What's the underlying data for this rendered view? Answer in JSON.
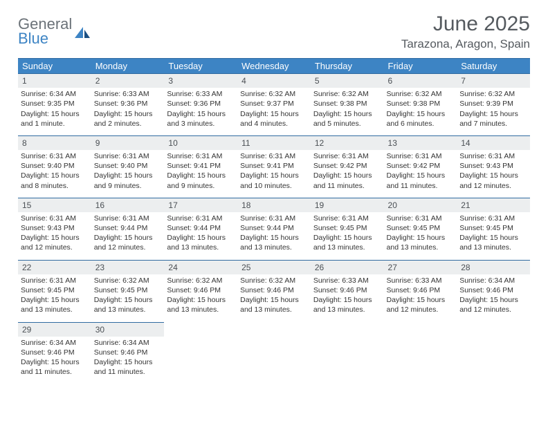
{
  "brand": {
    "general": "General",
    "blue": "Blue"
  },
  "title": "June 2025",
  "location": "Tarazona, Aragon, Spain",
  "colors": {
    "header_bg": "#3d84c4",
    "header_border": "#2f6aa0",
    "daynum_bg": "#eceeef",
    "text": "#333333",
    "muted": "#555a5f"
  },
  "weekdays": [
    "Sunday",
    "Monday",
    "Tuesday",
    "Wednesday",
    "Thursday",
    "Friday",
    "Saturday"
  ],
  "weeks": [
    [
      {
        "n": "1",
        "sr": "6:34 AM",
        "ss": "9:35 PM",
        "dl": "15 hours and 1 minute."
      },
      {
        "n": "2",
        "sr": "6:33 AM",
        "ss": "9:36 PM",
        "dl": "15 hours and 2 minutes."
      },
      {
        "n": "3",
        "sr": "6:33 AM",
        "ss": "9:36 PM",
        "dl": "15 hours and 3 minutes."
      },
      {
        "n": "4",
        "sr": "6:32 AM",
        "ss": "9:37 PM",
        "dl": "15 hours and 4 minutes."
      },
      {
        "n": "5",
        "sr": "6:32 AM",
        "ss": "9:38 PM",
        "dl": "15 hours and 5 minutes."
      },
      {
        "n": "6",
        "sr": "6:32 AM",
        "ss": "9:38 PM",
        "dl": "15 hours and 6 minutes."
      },
      {
        "n": "7",
        "sr": "6:32 AM",
        "ss": "9:39 PM",
        "dl": "15 hours and 7 minutes."
      }
    ],
    [
      {
        "n": "8",
        "sr": "6:31 AM",
        "ss": "9:40 PM",
        "dl": "15 hours and 8 minutes."
      },
      {
        "n": "9",
        "sr": "6:31 AM",
        "ss": "9:40 PM",
        "dl": "15 hours and 9 minutes."
      },
      {
        "n": "10",
        "sr": "6:31 AM",
        "ss": "9:41 PM",
        "dl": "15 hours and 9 minutes."
      },
      {
        "n": "11",
        "sr": "6:31 AM",
        "ss": "9:41 PM",
        "dl": "15 hours and 10 minutes."
      },
      {
        "n": "12",
        "sr": "6:31 AM",
        "ss": "9:42 PM",
        "dl": "15 hours and 11 minutes."
      },
      {
        "n": "13",
        "sr": "6:31 AM",
        "ss": "9:42 PM",
        "dl": "15 hours and 11 minutes."
      },
      {
        "n": "14",
        "sr": "6:31 AM",
        "ss": "9:43 PM",
        "dl": "15 hours and 12 minutes."
      }
    ],
    [
      {
        "n": "15",
        "sr": "6:31 AM",
        "ss": "9:43 PM",
        "dl": "15 hours and 12 minutes."
      },
      {
        "n": "16",
        "sr": "6:31 AM",
        "ss": "9:44 PM",
        "dl": "15 hours and 12 minutes."
      },
      {
        "n": "17",
        "sr": "6:31 AM",
        "ss": "9:44 PM",
        "dl": "15 hours and 13 minutes."
      },
      {
        "n": "18",
        "sr": "6:31 AM",
        "ss": "9:44 PM",
        "dl": "15 hours and 13 minutes."
      },
      {
        "n": "19",
        "sr": "6:31 AM",
        "ss": "9:45 PM",
        "dl": "15 hours and 13 minutes."
      },
      {
        "n": "20",
        "sr": "6:31 AM",
        "ss": "9:45 PM",
        "dl": "15 hours and 13 minutes."
      },
      {
        "n": "21",
        "sr": "6:31 AM",
        "ss": "9:45 PM",
        "dl": "15 hours and 13 minutes."
      }
    ],
    [
      {
        "n": "22",
        "sr": "6:31 AM",
        "ss": "9:45 PM",
        "dl": "15 hours and 13 minutes."
      },
      {
        "n": "23",
        "sr": "6:32 AM",
        "ss": "9:45 PM",
        "dl": "15 hours and 13 minutes."
      },
      {
        "n": "24",
        "sr": "6:32 AM",
        "ss": "9:46 PM",
        "dl": "15 hours and 13 minutes."
      },
      {
        "n": "25",
        "sr": "6:32 AM",
        "ss": "9:46 PM",
        "dl": "15 hours and 13 minutes."
      },
      {
        "n": "26",
        "sr": "6:33 AM",
        "ss": "9:46 PM",
        "dl": "15 hours and 13 minutes."
      },
      {
        "n": "27",
        "sr": "6:33 AM",
        "ss": "9:46 PM",
        "dl": "15 hours and 12 minutes."
      },
      {
        "n": "28",
        "sr": "6:34 AM",
        "ss": "9:46 PM",
        "dl": "15 hours and 12 minutes."
      }
    ],
    [
      {
        "n": "29",
        "sr": "6:34 AM",
        "ss": "9:46 PM",
        "dl": "15 hours and 11 minutes."
      },
      {
        "n": "30",
        "sr": "6:34 AM",
        "ss": "9:46 PM",
        "dl": "15 hours and 11 minutes."
      },
      null,
      null,
      null,
      null,
      null
    ]
  ],
  "labels": {
    "sunrise": "Sunrise:",
    "sunset": "Sunset:",
    "daylight": "Daylight:"
  }
}
